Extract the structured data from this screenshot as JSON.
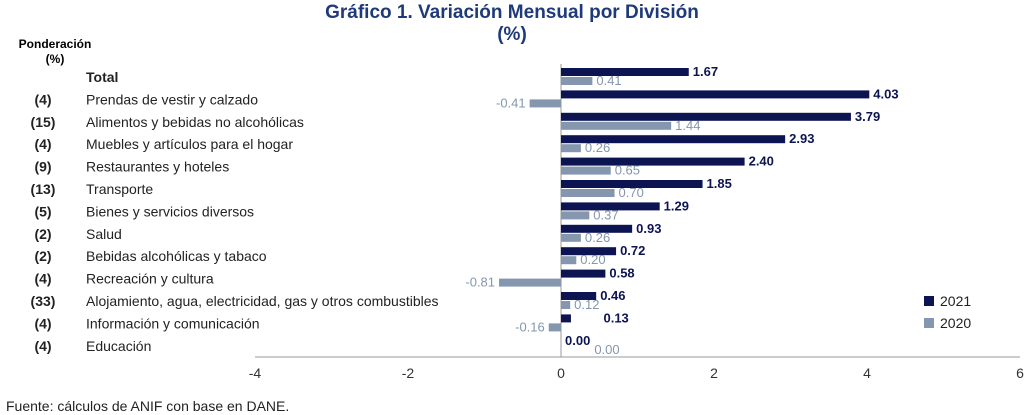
{
  "chart_data": {
    "type": "bar",
    "orientation": "horizontal",
    "title": "Gráfico 1. Variación Mensual por División (%)",
    "title_lines": [
      "Gráfico 1. Variación Mensual por División",
      "(%)"
    ],
    "weight_header": [
      "Ponderación",
      "(%)"
    ],
    "categories": [
      "Total",
      "Prendas de vestir y calzado",
      "Alimentos y bebidas no alcohólicas",
      "Muebles y artículos para el hogar",
      "Restaurantes y hoteles",
      "Transporte",
      "Bienes y servicios diversos",
      "Salud",
      "Bebidas alcohólicas y tabaco",
      "Recreación y cultura",
      "Alojamiento, agua, electricidad, gas y otros combustibles",
      "Información y comunicación",
      "Educación"
    ],
    "weights": [
      "",
      "(4)",
      "(15)",
      "(4)",
      "(9)",
      "(13)",
      "(5)",
      "(2)",
      "(2)",
      "(4)",
      "(33)",
      "(4)",
      "(4)"
    ],
    "series": [
      {
        "name": "2021",
        "color": "#0d1452",
        "values": [
          1.67,
          4.03,
          3.79,
          2.93,
          2.4,
          1.85,
          1.29,
          0.93,
          0.72,
          0.58,
          0.46,
          0.13,
          0.0
        ]
      },
      {
        "name": "2020",
        "color": "#8497ae",
        "values": [
          0.41,
          -0.41,
          1.44,
          0.26,
          0.65,
          0.7,
          0.37,
          0.26,
          0.2,
          -0.81,
          0.12,
          -0.16,
          0.0
        ]
      }
    ],
    "xlim": [
      -4,
      6
    ],
    "xticks": [
      -4,
      -2,
      0,
      2,
      4,
      6
    ],
    "legend": "bottom-right",
    "grid": false
  },
  "source": "Fuente: cálculos de ANIF con base en DANE."
}
